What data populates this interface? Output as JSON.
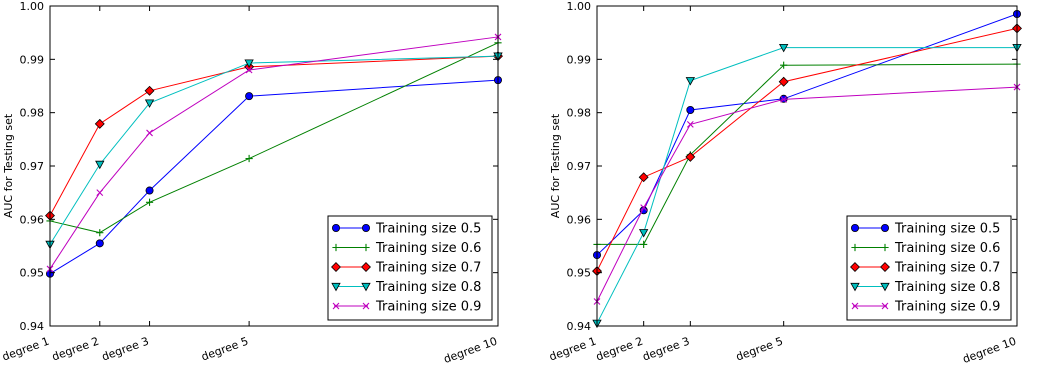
{
  "chart_data": [
    {
      "type": "line",
      "ylabel": "AUC for Testing set",
      "xlabel": "",
      "categories": [
        "degree 1",
        "degree 2",
        "degree 3",
        "degree 5",
        "degree 10"
      ],
      "x": [
        1,
        2,
        3,
        5,
        10
      ],
      "ylim": [
        0.94,
        1.0
      ],
      "yticks": [
        "0.94",
        "0.95",
        "0.96",
        "0.97",
        "0.98",
        "0.99",
        "1.00"
      ],
      "legend_position": "lower-right",
      "series": [
        {
          "name": "Training size 0.5",
          "color": "#0000ff",
          "marker": "circle",
          "values": [
            0.9498,
            0.9555,
            0.9654,
            0.9831,
            0.9861
          ]
        },
        {
          "name": "Training size 0.6",
          "color": "#008000",
          "marker": "plus",
          "values": [
            0.9597,
            0.9575,
            0.9632,
            0.9714,
            0.9931
          ]
        },
        {
          "name": "Training size 0.7",
          "color": "#ff0000",
          "marker": "diamond",
          "values": [
            0.9607,
            0.9779,
            0.9841,
            0.9886,
            0.9906
          ]
        },
        {
          "name": "Training size 0.8",
          "color": "#00bfbf",
          "marker": "triangle-down",
          "values": [
            0.9553,
            0.9703,
            0.9818,
            0.9893,
            0.9906
          ]
        },
        {
          "name": "Training size 0.9",
          "color": "#bf00bf",
          "marker": "x",
          "values": [
            0.9507,
            0.965,
            0.9762,
            0.988,
            0.9942
          ]
        }
      ]
    },
    {
      "type": "line",
      "ylabel": "AUC for Testing set",
      "xlabel": "",
      "categories": [
        "degree 1",
        "degree 2",
        "degree 3",
        "degree 5",
        "degree 10"
      ],
      "x": [
        1,
        2,
        3,
        5,
        10
      ],
      "ylim": [
        0.94,
        1.0
      ],
      "yticks": [
        "0.94",
        "0.95",
        "0.96",
        "0.97",
        "0.98",
        "0.99",
        "1.00"
      ],
      "legend_position": "lower-right",
      "series": [
        {
          "name": "Training size 0.5",
          "color": "#0000ff",
          "marker": "circle",
          "values": [
            0.9533,
            0.9617,
            0.9805,
            0.9826,
            0.9985
          ]
        },
        {
          "name": "Training size 0.6",
          "color": "#008000",
          "marker": "plus",
          "values": [
            0.9553,
            0.9553,
            0.9721,
            0.9889,
            0.9891
          ]
        },
        {
          "name": "Training size 0.7",
          "color": "#ff0000",
          "marker": "diamond",
          "values": [
            0.9503,
            0.9679,
            0.9717,
            0.9858,
            0.9958
          ]
        },
        {
          "name": "Training size 0.8",
          "color": "#00bfbf",
          "marker": "triangle-down",
          "values": [
            0.9405,
            0.9575,
            0.986,
            0.9922,
            0.9922
          ]
        },
        {
          "name": "Training size 0.9",
          "color": "#bf00bf",
          "marker": "x",
          "values": [
            0.9446,
            0.9622,
            0.9778,
            0.9825,
            0.9848
          ]
        }
      ]
    }
  ]
}
